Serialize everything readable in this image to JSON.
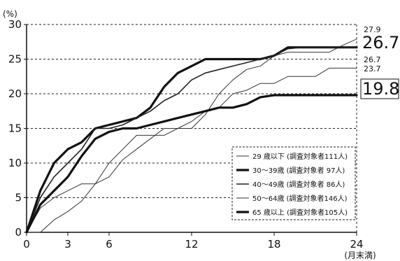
{
  "chart_data": {
    "type": "line",
    "title": "",
    "ylabel": "(%)",
    "xlabel": "(月末満)",
    "xlim": [
      0,
      24
    ],
    "ylim": [
      0,
      30
    ],
    "xticks": [
      0,
      3,
      6,
      12,
      18,
      24
    ],
    "yticks": [
      0,
      5,
      10,
      15,
      20,
      25,
      30
    ],
    "grid": "horizontal dashed",
    "legend_position": "lower-right",
    "series": [
      {
        "name": "29 歳以下 (調査対象者111人)",
        "style": "thin",
        "end_label": "27.9",
        "points": [
          [
            0,
            0
          ],
          [
            1,
            0
          ],
          [
            2,
            1.8
          ],
          [
            3,
            3
          ],
          [
            4,
            4.5
          ],
          [
            5,
            7
          ],
          [
            6,
            10
          ],
          [
            7,
            12
          ],
          [
            8,
            14
          ],
          [
            9,
            14
          ],
          [
            10,
            14
          ],
          [
            11,
            15
          ],
          [
            12,
            15
          ],
          [
            13,
            17
          ],
          [
            14,
            20
          ],
          [
            15,
            22
          ],
          [
            16,
            23.5
          ],
          [
            17,
            24
          ],
          [
            18,
            25.5
          ],
          [
            19,
            26
          ],
          [
            20,
            26
          ],
          [
            21,
            26
          ],
          [
            22,
            26
          ],
          [
            23,
            27
          ],
          [
            24,
            27.9
          ]
        ]
      },
      {
        "name": "30～39歳 (調査対象者 97人)",
        "style": "bold",
        "end_label": "26.7",
        "points": [
          [
            0,
            0
          ],
          [
            1,
            6
          ],
          [
            2,
            10
          ],
          [
            3,
            12
          ],
          [
            4,
            13
          ],
          [
            5,
            15
          ],
          [
            6,
            15.5
          ],
          [
            7,
            16
          ],
          [
            8,
            16.5
          ],
          [
            9,
            18
          ],
          [
            10,
            21
          ],
          [
            11,
            23
          ],
          [
            12,
            24
          ],
          [
            13,
            25
          ],
          [
            14,
            25
          ],
          [
            15,
            25
          ],
          [
            16,
            25
          ],
          [
            17,
            25
          ],
          [
            18,
            25.5
          ],
          [
            19,
            26.7
          ],
          [
            20,
            26.7
          ],
          [
            21,
            26.7
          ],
          [
            22,
            26.7
          ],
          [
            23,
            26.7
          ],
          [
            24,
            26.7
          ]
        ]
      },
      {
        "name": "40～49歳 (調査対象者 86人)",
        "style": "medium",
        "end_label": "26.7",
        "points": [
          [
            0,
            0
          ],
          [
            1,
            5
          ],
          [
            2,
            8
          ],
          [
            3,
            10
          ],
          [
            4,
            12
          ],
          [
            5,
            15
          ],
          [
            6,
            15
          ],
          [
            7,
            15.5
          ],
          [
            8,
            16.5
          ],
          [
            9,
            17.5
          ],
          [
            10,
            19
          ],
          [
            11,
            20
          ],
          [
            12,
            22
          ],
          [
            13,
            23
          ],
          [
            14,
            23.5
          ],
          [
            15,
            24
          ],
          [
            16,
            24.5
          ],
          [
            17,
            25
          ],
          [
            18,
            25.5
          ],
          [
            19,
            26.5
          ],
          [
            20,
            26.7
          ],
          [
            21,
            26.7
          ],
          [
            22,
            26.7
          ],
          [
            23,
            26.7
          ],
          [
            24,
            26.7
          ]
        ]
      },
      {
        "name": "50～64歳 (調査対象者146人)",
        "style": "thin",
        "end_label": "23.7",
        "points": [
          [
            0,
            0
          ],
          [
            1,
            3.5
          ],
          [
            2,
            5
          ],
          [
            3,
            6
          ],
          [
            4,
            7
          ],
          [
            5,
            7
          ],
          [
            6,
            8
          ],
          [
            7,
            10.5
          ],
          [
            8,
            12
          ],
          [
            9,
            13.5
          ],
          [
            10,
            15
          ],
          [
            11,
            15
          ],
          [
            12,
            16
          ],
          [
            13,
            17.5
          ],
          [
            14,
            18
          ],
          [
            15,
            20
          ],
          [
            16,
            20.5
          ],
          [
            17,
            21.5
          ],
          [
            18,
            21.5
          ],
          [
            19,
            22.5
          ],
          [
            20,
            22.5
          ],
          [
            21,
            22.5
          ],
          [
            22,
            23.7
          ],
          [
            23,
            23.7
          ],
          [
            24,
            23.7
          ]
        ]
      },
      {
        "name": "65 歳以上 (調査対象者105人)",
        "style": "bold",
        "end_label": "19.8",
        "end_label_boxed": true,
        "points": [
          [
            0,
            0
          ],
          [
            1,
            4
          ],
          [
            2,
            6
          ],
          [
            3,
            8
          ],
          [
            4,
            11
          ],
          [
            5,
            13.5
          ],
          [
            6,
            14.5
          ],
          [
            7,
            15
          ],
          [
            8,
            15
          ],
          [
            9,
            15.5
          ],
          [
            10,
            16
          ],
          [
            11,
            16.5
          ],
          [
            12,
            17
          ],
          [
            13,
            17.5
          ],
          [
            14,
            18
          ],
          [
            15,
            18
          ],
          [
            16,
            18.5
          ],
          [
            17,
            19.5
          ],
          [
            18,
            19.8
          ],
          [
            19,
            19.8
          ],
          [
            20,
            19.8
          ],
          [
            21,
            19.8
          ],
          [
            22,
            19.8
          ],
          [
            23,
            19.8
          ],
          [
            24,
            19.8
          ]
        ]
      }
    ],
    "end_labels": [
      {
        "text": "27.9",
        "value": 27.9
      },
      {
        "text": "26.7",
        "value": 26.7,
        "big": true
      },
      {
        "text": "26.7",
        "value": 26.7
      },
      {
        "text": "23.7",
        "value": 23.7
      },
      {
        "text": "19.8",
        "value": 19.8,
        "big": true,
        "boxed": true
      }
    ]
  }
}
